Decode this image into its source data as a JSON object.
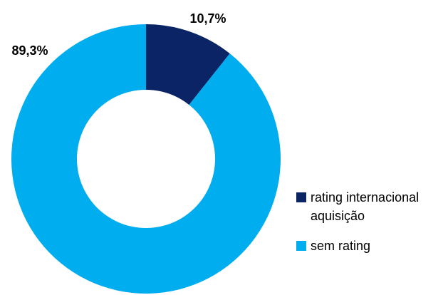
{
  "chart_data": {
    "type": "pie",
    "donut": true,
    "title": "",
    "categories": [
      "rating internacional aquisição",
      "sem rating"
    ],
    "values": [
      10.7,
      89.3
    ],
    "unit": "%",
    "data_labels": [
      "10,7%",
      "89,3%"
    ],
    "colors": [
      "#0a2466",
      "#00adef"
    ],
    "legend_position": "right-bottom"
  },
  "legend": {
    "items": [
      {
        "label_line1": "rating internacional",
        "label_line2": "aquisição",
        "color": "#0a2466"
      },
      {
        "label_line1": "sem rating",
        "label_line2": "",
        "color": "#00adef"
      }
    ]
  }
}
